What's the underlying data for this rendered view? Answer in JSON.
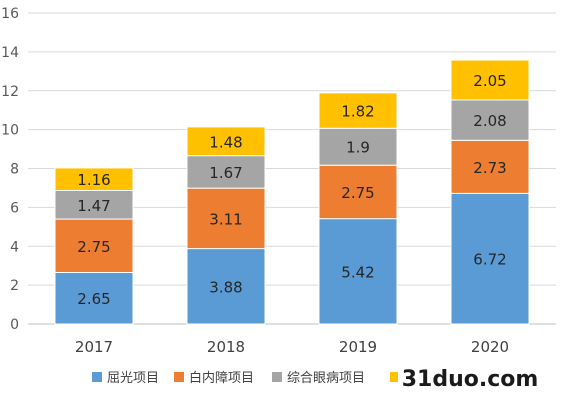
{
  "chart_data": {
    "type": "bar",
    "stacked": true,
    "categories": [
      "2017",
      "2018",
      "2019",
      "2020"
    ],
    "series": [
      {
        "name": "屈光项目",
        "color": "#5b9bd5",
        "values": [
          2.65,
          3.88,
          5.42,
          6.72
        ],
        "labels": [
          "2.65",
          "3.88",
          "5.42",
          "6.72"
        ]
      },
      {
        "name": "白内障项目",
        "color": "#ed7d31",
        "values": [
          2.75,
          3.11,
          2.75,
          2.73
        ],
        "labels": [
          "2.75",
          "3.11",
          "2.75",
          "2.73"
        ]
      },
      {
        "name": "综合眼病项目",
        "color": "#a5a5a5",
        "values": [
          1.47,
          1.67,
          1.9,
          2.08
        ],
        "labels": [
          "1.47",
          "1.67",
          "1.9",
          "2.08"
        ]
      },
      {
        "name": "",
        "color": "#ffc000",
        "values": [
          1.16,
          1.48,
          1.82,
          2.05
        ],
        "labels": [
          "1.16",
          "1.48",
          "1.82",
          "2.05"
        ]
      }
    ],
    "ylim": [
      0,
      16
    ],
    "yticks": [
      "0",
      "2",
      "4",
      "6",
      "8",
      "10",
      "12",
      "14",
      "16"
    ],
    "grid": true,
    "legend": "bottom",
    "watermark_text": "31duo.com"
  }
}
